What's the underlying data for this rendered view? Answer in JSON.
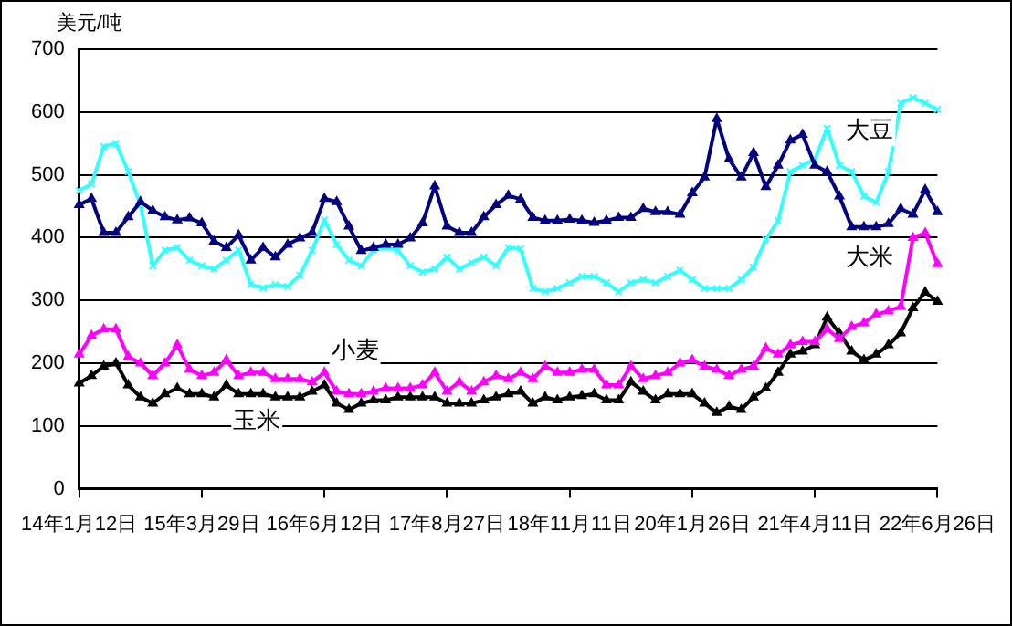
{
  "chart_data": {
    "type": "line",
    "ylabel": "美元/吨",
    "categories": [
      "14年1月12日",
      null,
      null,
      null,
      null,
      null,
      null,
      null,
      null,
      null,
      "15年3月29日",
      null,
      null,
      null,
      null,
      null,
      null,
      null,
      null,
      null,
      "16年6月12日",
      null,
      null,
      null,
      null,
      null,
      null,
      null,
      null,
      null,
      "17年8月27日",
      null,
      null,
      null,
      null,
      null,
      null,
      null,
      null,
      null,
      "18年11月11日",
      null,
      null,
      null,
      null,
      null,
      null,
      null,
      null,
      null,
      "20年1月26日",
      null,
      null,
      null,
      null,
      null,
      null,
      null,
      null,
      null,
      "21年4月11日",
      null,
      null,
      null,
      null,
      null,
      null,
      null,
      null,
      null,
      "22年6月26日"
    ],
    "ylim": [
      0,
      700
    ],
    "yticks": [
      0,
      100,
      200,
      300,
      400,
      500,
      600,
      700
    ],
    "grid": "y",
    "legend": false,
    "series": [
      {
        "name": "大米",
        "color": "#000080",
        "marker": "triangle",
        "values": [
          452,
          462,
          408,
          408,
          433,
          457,
          443,
          433,
          428,
          431,
          423,
          394,
          384,
          404,
          364,
          384,
          369,
          389,
          399,
          408,
          462,
          457,
          418,
          379,
          384,
          389,
          389,
          399,
          423,
          482,
          418,
          408,
          408,
          433,
          452,
          467,
          461,
          432,
          427,
          427,
          429,
          427,
          424,
          427,
          432,
          432,
          446,
          441,
          441,
          437,
          471,
          496,
          589,
          525,
          496,
          535,
          481,
          515,
          555,
          564,
          515,
          505,
          466,
          417,
          417,
          417,
          422,
          446,
          437,
          476,
          441
        ]
      },
      {
        "name": "大豆",
        "color": "#33ffff",
        "marker": "cross",
        "values": [
          475,
          485,
          545,
          550,
          505,
          452,
          355,
          380,
          384,
          364,
          355,
          350,
          364,
          380,
          325,
          320,
          325,
          322,
          340,
          380,
          428,
          389,
          364,
          355,
          380,
          384,
          380,
          355,
          345,
          350,
          369,
          350,
          360,
          369,
          355,
          384,
          382,
          319,
          314,
          319,
          328,
          338,
          338,
          328,
          314,
          328,
          333,
          328,
          338,
          348,
          333,
          319,
          319,
          319,
          333,
          353,
          397,
          427,
          505,
          515,
          525,
          574,
          515,
          505,
          466,
          456,
          505,
          614,
          623,
          614,
          604
        ]
      },
      {
        "name": "小麦",
        "color": "#ff00ff",
        "marker": "triangle",
        "values": [
          214,
          244,
          254,
          254,
          210,
          200,
          180,
          200,
          229,
          190,
          180,
          185,
          205,
          180,
          185,
          185,
          175,
          175,
          175,
          170,
          185,
          155,
          151,
          151,
          155,
          160,
          160,
          160,
          165,
          185,
          155,
          170,
          155,
          170,
          180,
          175,
          185,
          175,
          195,
          185,
          185,
          190,
          190,
          165,
          165,
          195,
          175,
          180,
          185,
          200,
          205,
          195,
          190,
          180,
          190,
          195,
          224,
          214,
          229,
          234,
          234,
          254,
          239,
          258,
          264,
          278,
          283,
          290,
          400,
          407,
          358
        ]
      },
      {
        "name": "玉米",
        "color": "#000000",
        "marker": "triangle",
        "values": [
          168,
          180,
          195,
          200,
          165,
          146,
          136,
          151,
          160,
          151,
          151,
          146,
          165,
          151,
          151,
          151,
          146,
          146,
          146,
          155,
          165,
          136,
          126,
          136,
          141,
          141,
          146,
          146,
          146,
          146,
          136,
          136,
          136,
          141,
          146,
          151,
          155,
          136,
          146,
          141,
          146,
          148,
          151,
          141,
          141,
          170,
          155,
          141,
          151,
          151,
          151,
          136,
          121,
          131,
          126,
          146,
          160,
          185,
          214,
          219,
          229,
          273,
          248,
          219,
          205,
          214,
          229,
          248,
          288,
          313,
          298
        ]
      }
    ]
  }
}
